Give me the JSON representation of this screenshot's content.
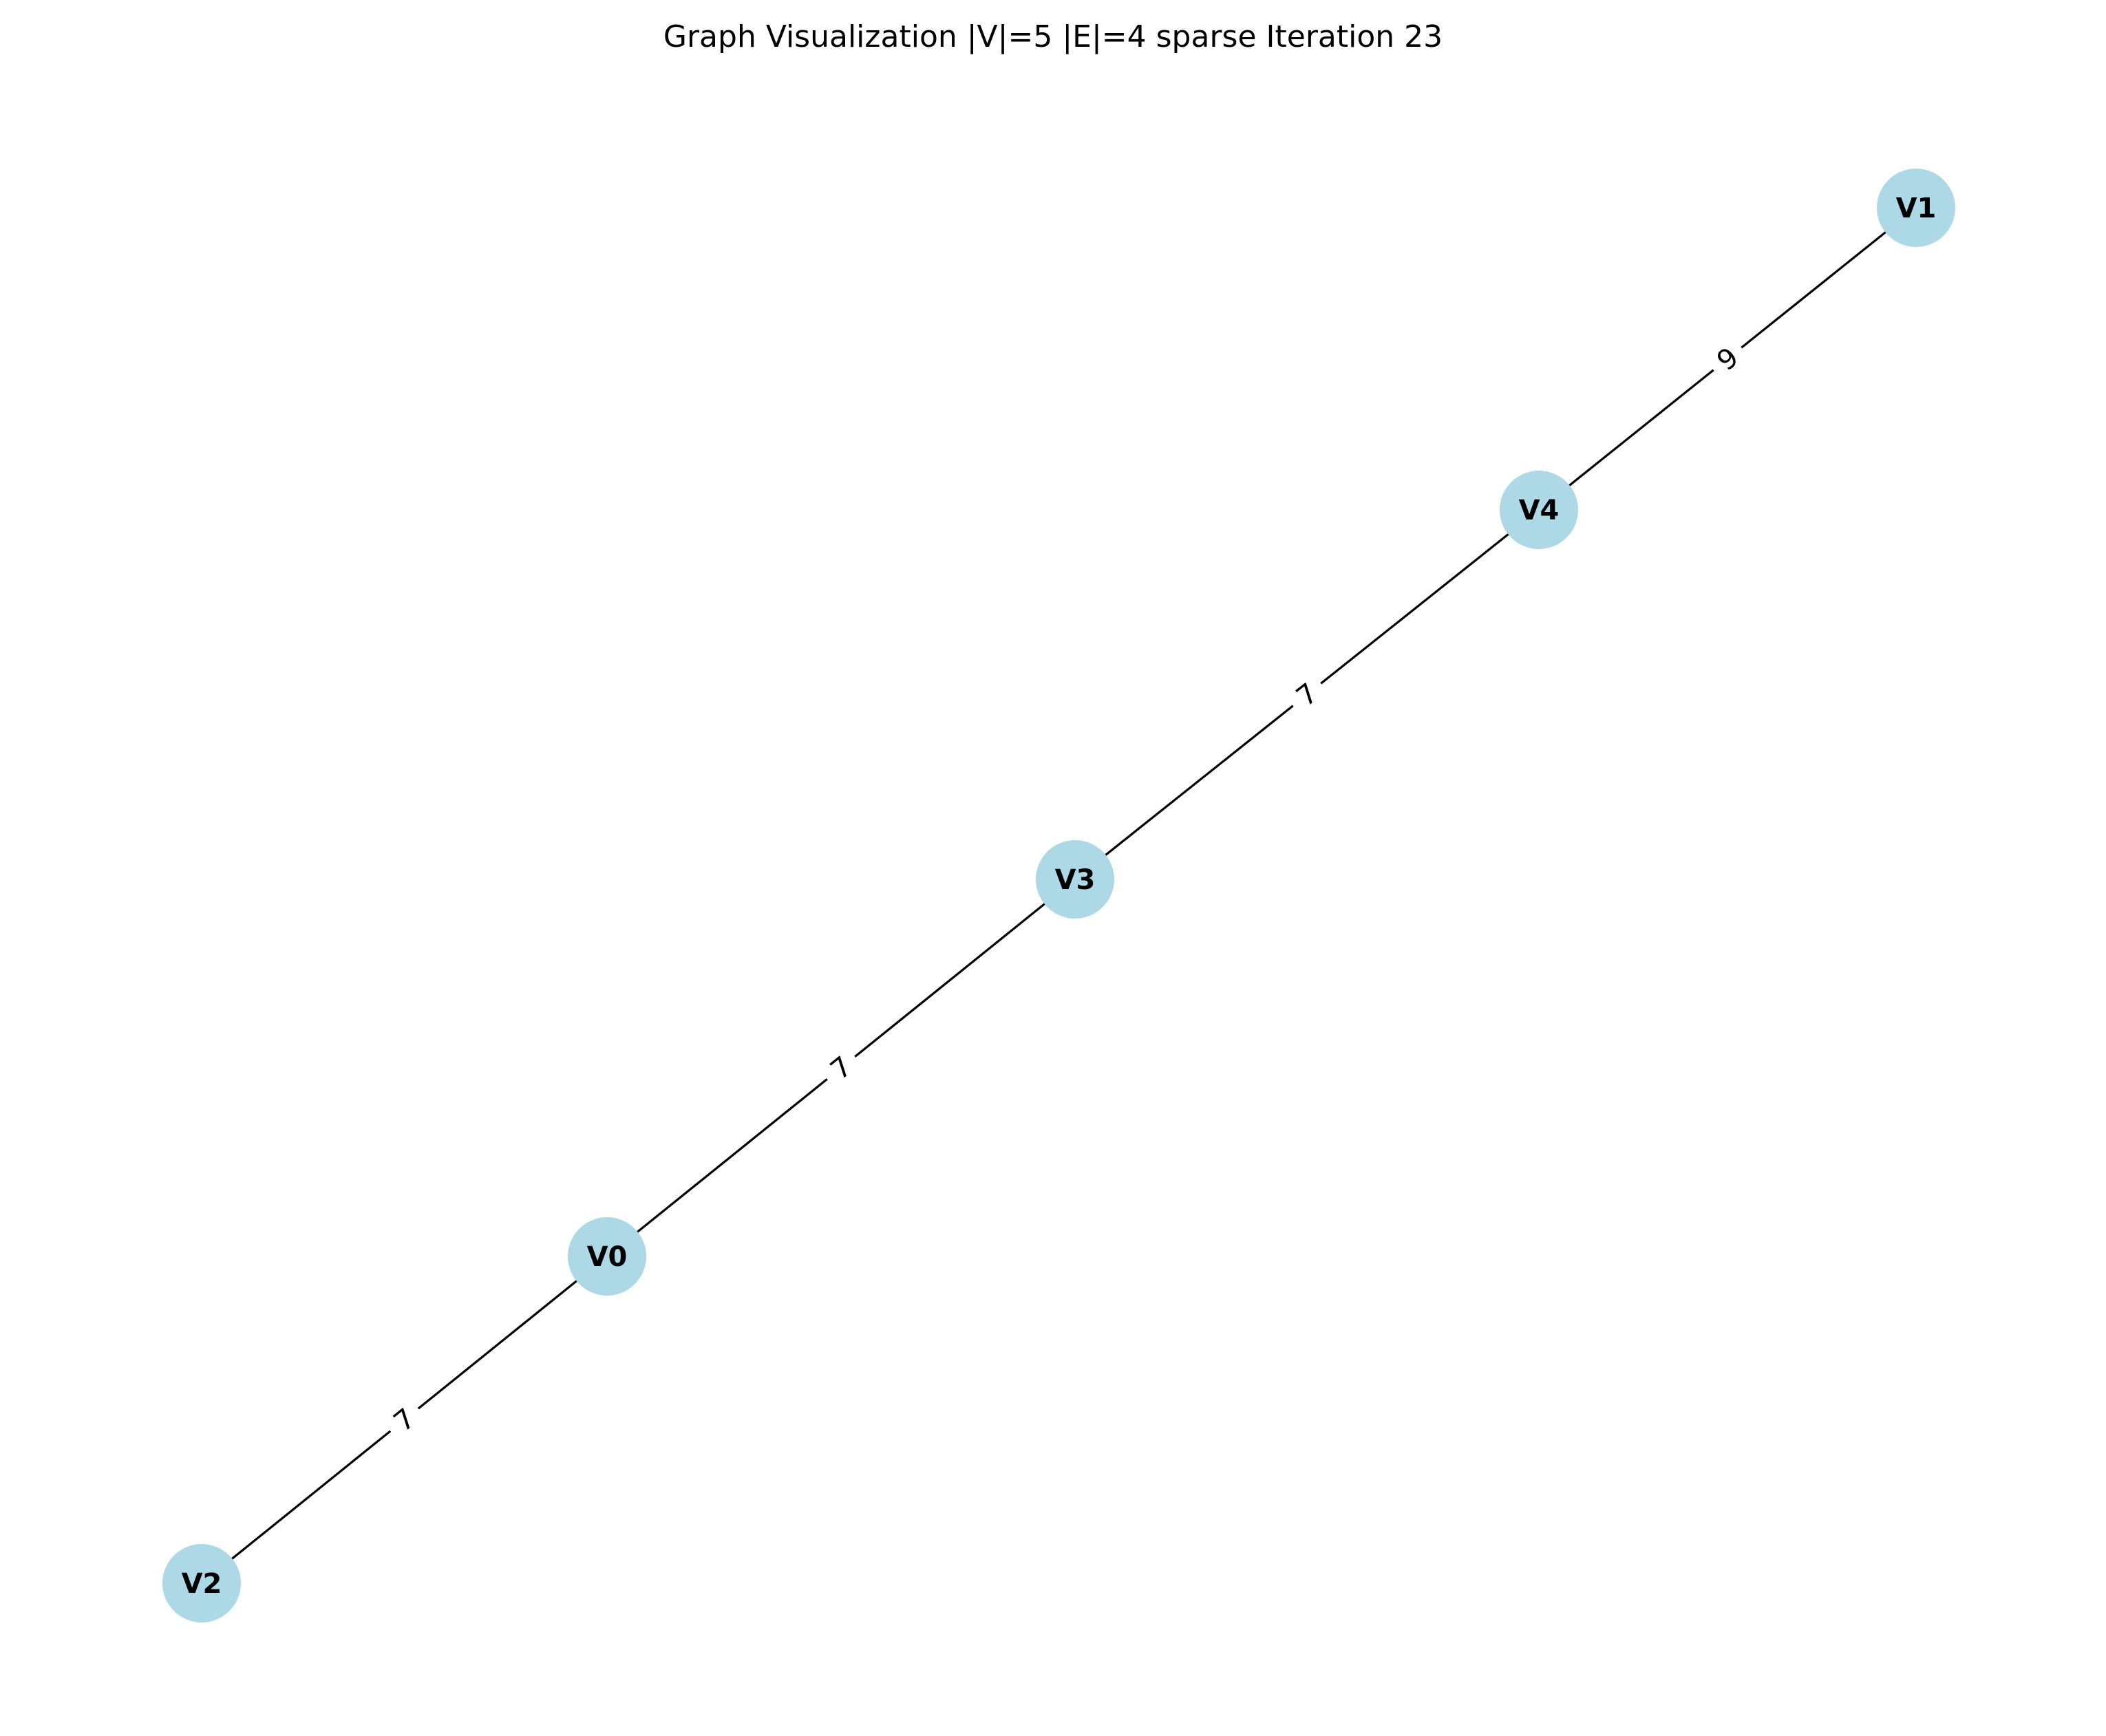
{
  "title": "Graph Visualization |V|=5 |E|=4 sparse Iteration 23",
  "colors": {
    "node_fill": "#add8e6",
    "edge": "#000000",
    "background": "#ffffff"
  },
  "graph": {
    "nodes": [
      {
        "id": "V0",
        "label": "V0"
      },
      {
        "id": "V1",
        "label": "V1"
      },
      {
        "id": "V2",
        "label": "V2"
      },
      {
        "id": "V3",
        "label": "V3"
      },
      {
        "id": "V4",
        "label": "V4"
      }
    ],
    "edges": [
      {
        "source": "V1",
        "target": "V4",
        "weight": "9"
      },
      {
        "source": "V4",
        "target": "V3",
        "weight": "7"
      },
      {
        "source": "V3",
        "target": "V0",
        "weight": "7"
      },
      {
        "source": "V0",
        "target": "V2",
        "weight": "7"
      }
    ]
  }
}
